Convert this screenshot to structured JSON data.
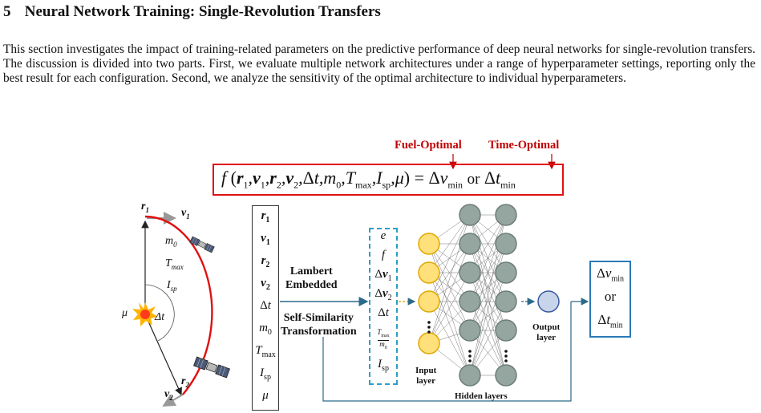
{
  "section": {
    "number": "5",
    "title": "Neural Network Training: Single-Revolution Transfers"
  },
  "paragraph": "This section investigates the impact of training-related parameters on the predictive performance of deep neural networks for single-revolution transfers. The discussion is divided into two parts. First, we evaluate multiple network architectures under a range of hyperparameter settings, reporting only the best result for each configuration. Second, we analyze the sensitivity of the optimal architecture to individual hyperparameters.",
  "figure": {
    "fuel_optimal": "Fuel-Optimal",
    "time_optimal": "Time-Optimal",
    "lambert": [
      "Lambert",
      "Embedded"
    ],
    "self_similarity": [
      "Self-Similarity",
      "Transformation"
    ],
    "input_layer": [
      "Input",
      "layer"
    ],
    "hidden_layers": "Hidden layers",
    "output_layer": [
      "Output",
      "layer"
    ],
    "or": "or"
  },
  "colors": {
    "accent_red": "#c00000",
    "orbit_red": "#e01010",
    "input_node": "#ffe07a",
    "hidden_node": "#95a59f",
    "output_node": "#c8d4ea",
    "dashed_blue": "#2aa0c8",
    "flow_line": "#2a6a8a"
  },
  "icons": [
    "sun-icon",
    "spacecraft-icon"
  ]
}
